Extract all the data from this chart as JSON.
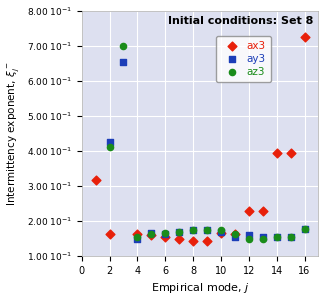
{
  "title": "Initial conditions: Set 8",
  "xlabel": "Empirical mode, $j$",
  "ylabel": "Intermittency exponent, $\\xi_j^-$",
  "xlim": [
    0,
    17
  ],
  "ylim": [
    0.1,
    0.8
  ],
  "xticks": [
    0,
    2,
    4,
    6,
    8,
    10,
    12,
    14,
    16
  ],
  "ytick_vals": [
    0.1,
    0.2,
    0.3,
    0.4,
    0.5,
    0.6,
    0.7,
    0.8
  ],
  "ytick_labels": [
    "1.00 $10^{-1}$",
    "2.00 $10^{-1}$",
    "3.00 $10^{-1}$",
    "4.00 $10^{-1}$",
    "5.00 $10^{-1}$",
    "6.00 $10^{-1}$",
    "7.00 $10^{-1}$",
    "8.00 $10^{-1}$"
  ],
  "ax3_x": [
    1,
    2,
    4,
    5,
    6,
    7,
    8,
    9,
    10,
    11,
    12,
    13,
    14,
    15,
    16
  ],
  "ax3_y": [
    0.318,
    0.163,
    0.163,
    0.16,
    0.155,
    0.15,
    0.143,
    0.143,
    0.165,
    0.163,
    0.228,
    0.228,
    0.395,
    0.395,
    0.725
  ],
  "ay3_x": [
    2,
    3,
    4,
    5,
    6,
    7,
    8,
    9,
    10,
    11,
    12,
    13,
    14,
    15,
    16
  ],
  "ay3_y": [
    0.425,
    0.655,
    0.148,
    0.165,
    0.163,
    0.168,
    0.175,
    0.175,
    0.17,
    0.155,
    0.16,
    0.155,
    0.155,
    0.155,
    0.178
  ],
  "az3_x": [
    2,
    3,
    4,
    5,
    6,
    7,
    8,
    9,
    10,
    11,
    12,
    13,
    14,
    15,
    16
  ],
  "az3_y": [
    0.41,
    0.7,
    0.155,
    0.162,
    0.165,
    0.168,
    0.175,
    0.175,
    0.175,
    0.163,
    0.148,
    0.148,
    0.155,
    0.155,
    0.178
  ],
  "ax3_color": "#e8200a",
  "ay3_color": "#1c3eb8",
  "az3_color": "#1a8c1a",
  "background_color": "#dde0f0",
  "grid_color": "#ffffff",
  "legend_labels": [
    "ax3",
    "ay3",
    "az3"
  ],
  "fig_bg": "#ffffff"
}
